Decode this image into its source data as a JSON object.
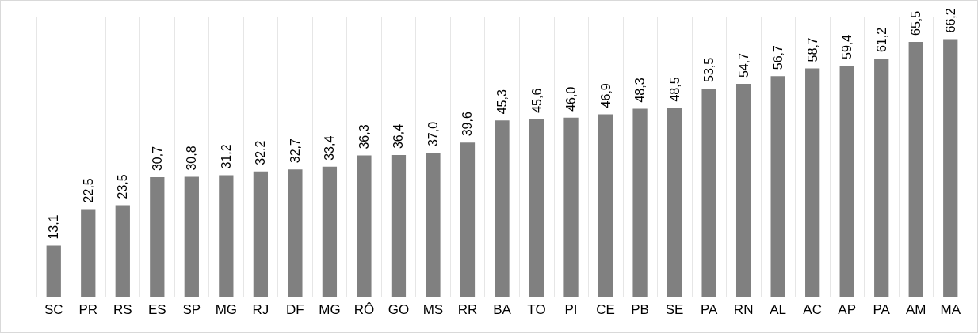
{
  "chart_data": {
    "type": "bar",
    "categories": [
      "SC",
      "PR",
      "RS",
      "ES",
      "SP",
      "MG",
      "RJ",
      "DF",
      "MG",
      "RÔ",
      "GO",
      "MS",
      "RR",
      "BA",
      "TO",
      "PI",
      "CE",
      "PB",
      "SE",
      "PA",
      "RN",
      "AL",
      "AC",
      "AP",
      "PA",
      "AM",
      "MA"
    ],
    "values": [
      13.1,
      22.5,
      23.5,
      30.7,
      30.8,
      31.2,
      32.2,
      32.7,
      33.4,
      36.3,
      36.4,
      37.0,
      39.6,
      45.3,
      45.6,
      46.0,
      46.9,
      48.3,
      48.5,
      53.5,
      54.7,
      56.7,
      58.7,
      59.4,
      61.2,
      65.5,
      66.2
    ],
    "value_labels": [
      "13,1",
      "22,5",
      "23,5",
      "30,7",
      "30,8",
      "31,2",
      "32,2",
      "32,7",
      "33,4",
      "36,3",
      "36,4",
      "37,0",
      "39,6",
      "45,3",
      "45,6",
      "46,0",
      "46,9",
      "48,3",
      "48,5",
      "53,5",
      "54,7",
      "56,7",
      "58,7",
      "59,4",
      "61,2",
      "65,5",
      "66,2"
    ],
    "color": "#808080",
    "grid": "x"
  }
}
